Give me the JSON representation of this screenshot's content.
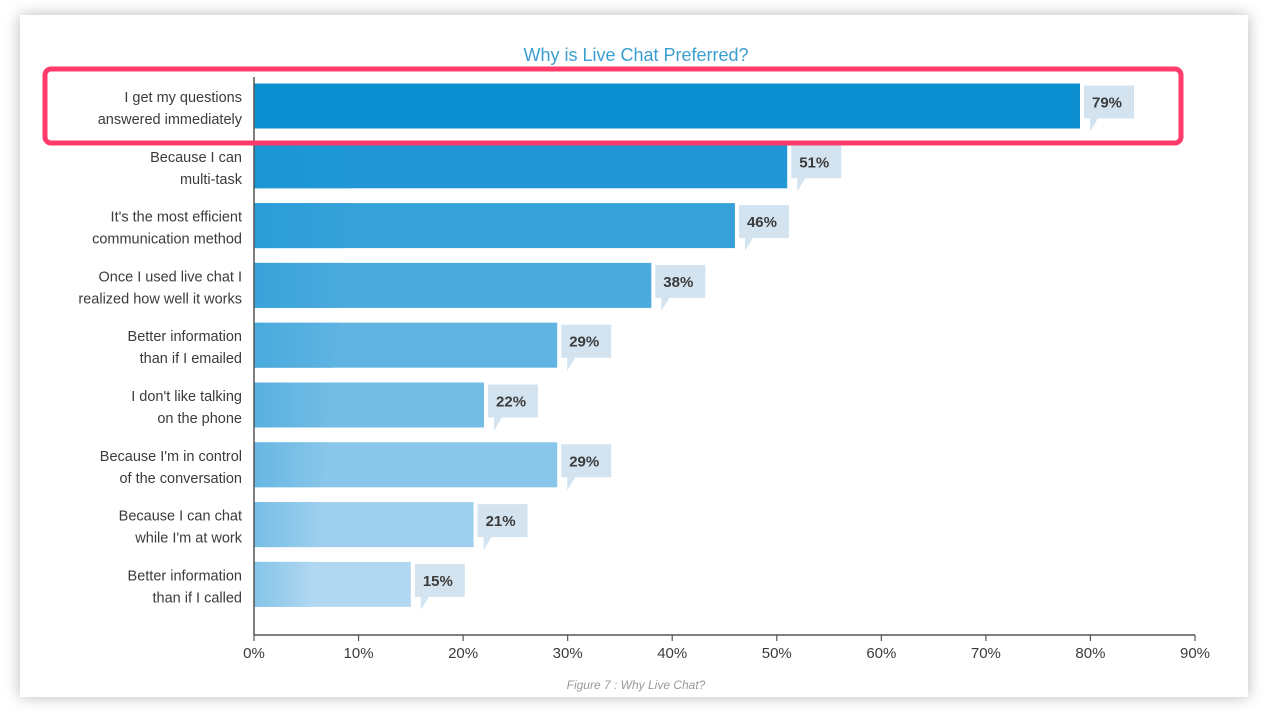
{
  "chart_data": {
    "type": "bar",
    "orientation": "horizontal",
    "title": "Why is Live Chat Preferred?",
    "caption": "Figure 7 : Why Live Chat?",
    "categories": [
      [
        "I get my questions",
        "answered immediately"
      ],
      [
        "Because I can",
        "multi-task"
      ],
      [
        "It's the most efficient",
        "communication method"
      ],
      [
        "Once I used live chat I",
        "realized how well it works"
      ],
      [
        "Better information",
        "than if I emailed"
      ],
      [
        "I don't like talking",
        "on the phone"
      ],
      [
        "Because I'm in control",
        "of the conversation"
      ],
      [
        "Because I can chat",
        "while I'm at work"
      ],
      [
        "Better information",
        "than if I called"
      ]
    ],
    "values": [
      79,
      51,
      46,
      38,
      29,
      22,
      29,
      21,
      15
    ],
    "value_labels": [
      "79%",
      "51%",
      "46%",
      "38%",
      "29%",
      "22%",
      "29%",
      "21%",
      "15%"
    ],
    "x_ticks": [
      0,
      10,
      20,
      30,
      40,
      50,
      60,
      70,
      80,
      90
    ],
    "x_tick_labels": [
      "0%",
      "10%",
      "20%",
      "30%",
      "40%",
      "50%",
      "60%",
      "70%",
      "80%",
      "90%"
    ],
    "xlim": [
      0,
      90
    ],
    "grid": false,
    "legend": "none",
    "highlighted_category_index": 0,
    "colors": {
      "title": "#3a9fd0",
      "bar_dark": "#0c8fd1",
      "bar_light": "#b2d8f1",
      "label_bubble": "#d3e4f0",
      "highlight": "#ff3b6b",
      "axis": "#555555"
    }
  }
}
